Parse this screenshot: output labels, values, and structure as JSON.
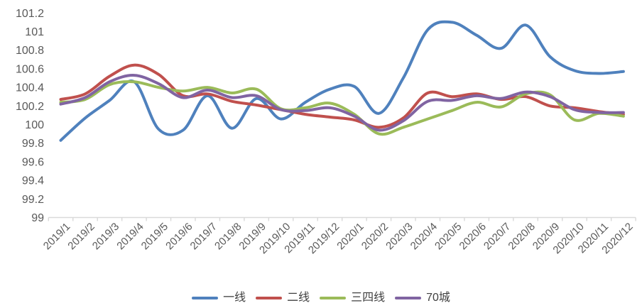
{
  "chart_data": {
    "type": "line",
    "title": "",
    "categories": [
      "2019/1",
      "2019/2",
      "2019/3",
      "2019/4",
      "2019/5",
      "2019/6",
      "2019/7",
      "2019/8",
      "2019/9",
      "2019/10",
      "2019/11",
      "2019/12",
      "2020/1",
      "2020/2",
      "2020/3",
      "2020/4",
      "2020/5",
      "2020/6",
      "2020/7",
      "2020/8",
      "2020/9",
      "2020/10",
      "2020/11",
      "2020/12"
    ],
    "series": [
      {
        "name": "一线",
        "color": "#4f81bd",
        "values": [
          99.83,
          100.07,
          100.26,
          100.46,
          99.95,
          99.94,
          100.31,
          99.96,
          100.28,
          100.06,
          100.24,
          100.38,
          100.41,
          100.12,
          100.5,
          101.02,
          101.1,
          100.96,
          100.82,
          101.07,
          100.73,
          100.58,
          100.55,
          100.57
        ]
      },
      {
        "name": "二线",
        "color": "#c0504d",
        "values": [
          100.27,
          100.33,
          100.52,
          100.64,
          100.54,
          100.31,
          100.33,
          100.25,
          100.21,
          100.16,
          100.11,
          100.08,
          100.05,
          99.97,
          100.07,
          100.34,
          100.3,
          100.33,
          100.27,
          100.3,
          100.2,
          100.18,
          100.14,
          100.11
        ]
      },
      {
        "name": "三四线",
        "color": "#9bbb59",
        "values": [
          100.24,
          100.27,
          100.43,
          100.46,
          100.4,
          100.36,
          100.4,
          100.34,
          100.38,
          100.17,
          100.18,
          100.23,
          100.11,
          99.9,
          99.97,
          100.06,
          100.15,
          100.24,
          100.19,
          100.33,
          100.32,
          100.05,
          100.12,
          100.09
        ]
      },
      {
        "name": "70城",
        "color": "#8064a2",
        "values": [
          100.22,
          100.29,
          100.46,
          100.53,
          100.44,
          100.29,
          100.37,
          100.29,
          100.31,
          100.16,
          100.15,
          100.18,
          100.09,
          99.94,
          100.04,
          100.25,
          100.26,
          100.31,
          100.28,
          100.35,
          100.3,
          100.16,
          100.13,
          100.13
        ]
      }
    ],
    "y_axis": {
      "min": 99,
      "max": 101.2,
      "step": 0.2,
      "tick_labels": [
        "99",
        "99.2",
        "99.4",
        "99.6",
        "99.8",
        "100",
        "100.2",
        "100.4",
        "100.6",
        "100.8",
        "101",
        "101.2"
      ]
    },
    "x_axis": {
      "label_rotation_deg": -45
    },
    "legend_position": "bottom",
    "grid": false,
    "axis_color": "#d9d9d9",
    "tick_text_color": "#595959"
  }
}
